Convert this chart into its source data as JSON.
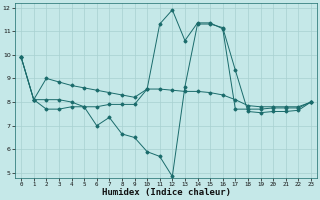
{
  "xlabel": "Humidex (Indice chaleur)",
  "background_color": "#c5e8e8",
  "grid_color": "#a8d0d0",
  "line_color": "#1a6b6b",
  "xlim": [
    -0.5,
    23.5
  ],
  "ylim": [
    4.8,
    12.2
  ],
  "yticks": [
    5,
    6,
    7,
    8,
    9,
    10,
    11,
    12
  ],
  "xticks": [
    0,
    1,
    2,
    3,
    4,
    5,
    6,
    7,
    8,
    9,
    10,
    11,
    12,
    13,
    14,
    15,
    16,
    17,
    18,
    19,
    20,
    21,
    22,
    23
  ],
  "line1_x": [
    0,
    1,
    2,
    3,
    4,
    5,
    6,
    7,
    8,
    9,
    10,
    11,
    12,
    13,
    14,
    15,
    16,
    17,
    18,
    19,
    20,
    21,
    22,
    23
  ],
  "line1_y": [
    9.9,
    8.1,
    9.0,
    8.85,
    8.7,
    8.6,
    8.5,
    8.4,
    8.3,
    8.2,
    8.55,
    8.55,
    8.5,
    8.45,
    8.45,
    8.4,
    8.3,
    8.1,
    7.85,
    7.8,
    7.8,
    7.8,
    7.8,
    8.0
  ],
  "line2_x": [
    0,
    1,
    2,
    3,
    4,
    5,
    6,
    7,
    8,
    9,
    10,
    11,
    12,
    13,
    14,
    15,
    16,
    17,
    18,
    19,
    20,
    21,
    22,
    23
  ],
  "line2_y": [
    9.9,
    8.1,
    7.7,
    7.7,
    7.8,
    7.8,
    7.0,
    7.35,
    6.65,
    6.5,
    5.9,
    5.7,
    4.85,
    8.65,
    11.3,
    11.3,
    11.15,
    9.35,
    7.6,
    7.55,
    7.6,
    7.6,
    7.65,
    8.0
  ],
  "line3_x": [
    0,
    1,
    2,
    3,
    4,
    5,
    6,
    7,
    8,
    9,
    10,
    11,
    12,
    13,
    14,
    15,
    16,
    17,
    18,
    19,
    20,
    21,
    22,
    23
  ],
  "line3_y": [
    9.9,
    8.1,
    8.1,
    8.1,
    8.0,
    7.8,
    7.8,
    7.9,
    7.9,
    7.9,
    8.55,
    11.3,
    11.9,
    10.6,
    11.35,
    11.35,
    11.1,
    7.7,
    7.7,
    7.7,
    7.75,
    7.75,
    7.75,
    8.0
  ]
}
